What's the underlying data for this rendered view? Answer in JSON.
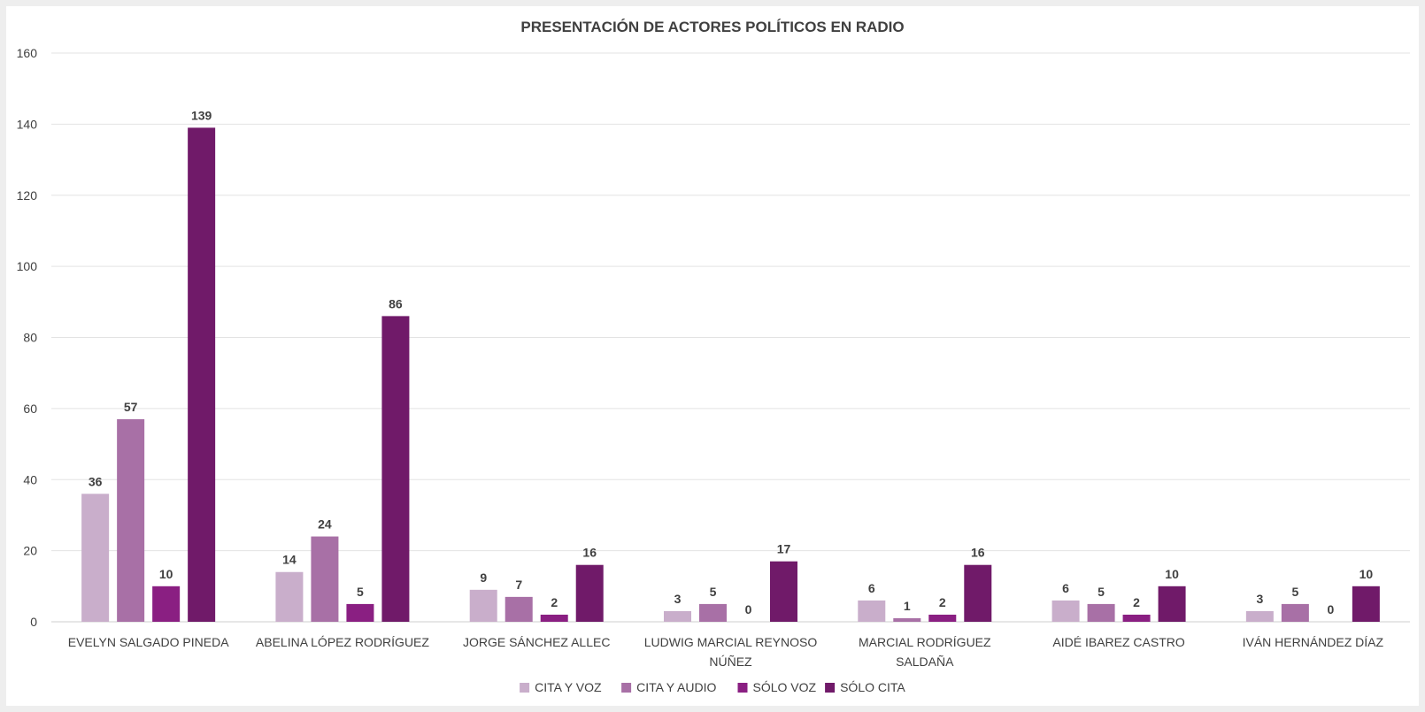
{
  "chart_data": {
    "type": "bar",
    "title": "PRESENTACIÓN DE ACTORES POLÍTICOS EN RADIO",
    "xlabel": "",
    "ylabel": "",
    "ylim": [
      0,
      160
    ],
    "yticks": [
      0,
      20,
      40,
      60,
      80,
      100,
      120,
      140,
      160
    ],
    "grid": true,
    "legend_position": "bottom",
    "categories": [
      [
        "EVELYN SALGADO PINEDA"
      ],
      [
        "ABELINA LÓPEZ RODRÍGUEZ"
      ],
      [
        "JORGE SÁNCHEZ ALLEC"
      ],
      [
        "LUDWIG MARCIAL REYNOSO",
        "NÚÑEZ"
      ],
      [
        "MARCIAL RODRÍGUEZ",
        "SALDAÑA"
      ],
      [
        "AIDÉ IBAREZ CASTRO"
      ],
      [
        "IVÁN HERNÁNDEZ DÍAZ"
      ]
    ],
    "series": [
      {
        "name": "CITA Y VOZ",
        "color": "#c9aecb",
        "values": [
          36,
          14,
          9,
          3,
          6,
          6,
          3
        ]
      },
      {
        "name": "CITA Y AUDIO",
        "color": "#a870a6",
        "values": [
          57,
          24,
          7,
          5,
          1,
          5,
          5
        ]
      },
      {
        "name": "SÓLO VOZ",
        "color": "#8a1f82",
        "values": [
          10,
          5,
          2,
          0,
          2,
          2,
          0
        ]
      },
      {
        "name": "SÓLO CITA",
        "color": "#701a69",
        "values": [
          139,
          86,
          16,
          17,
          16,
          10,
          10
        ]
      }
    ]
  }
}
